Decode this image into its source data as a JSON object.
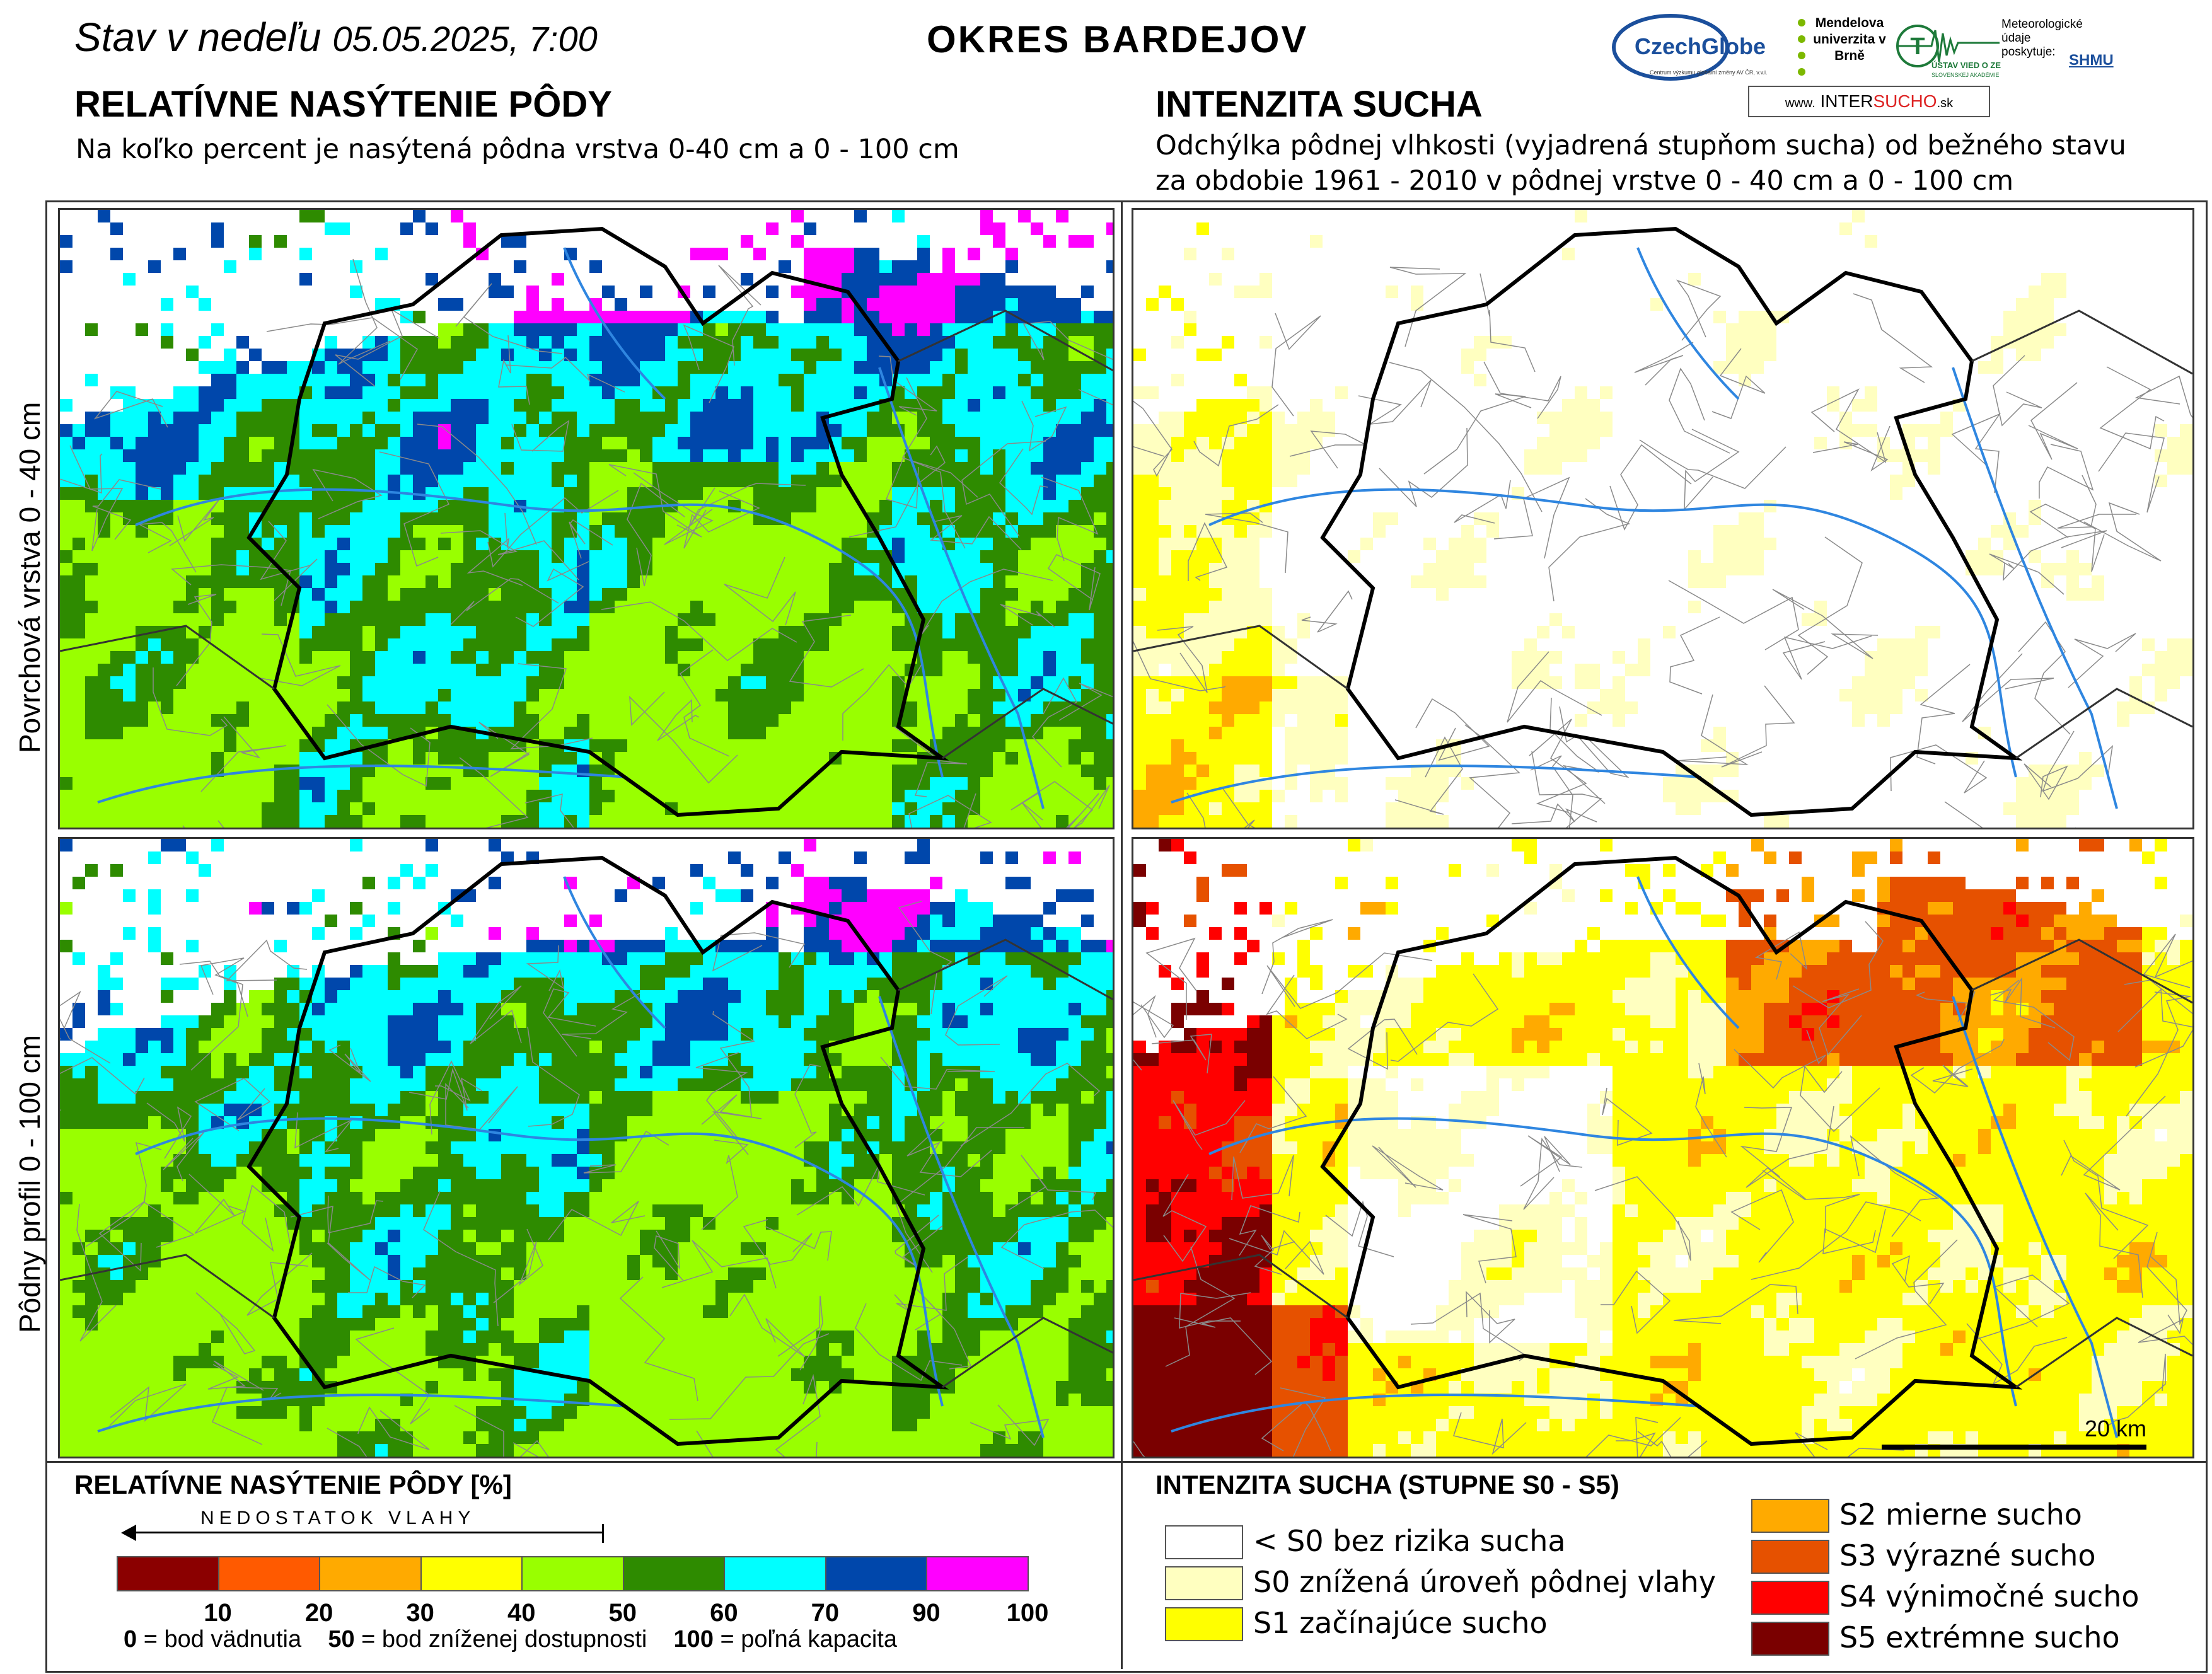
{
  "header": {
    "status_prefix": "Stav v nedeľu",
    "status_datetime": "05.05.2025, 7:00",
    "region": "OKRES  BARDEJOV"
  },
  "left_section": {
    "title": "RELATÍVNE NASÝTENIE PÔDY",
    "subtitle": "Na koľko percent je nasýtená pôdna vrstva 0-40 cm a 0 - 100 cm"
  },
  "right_section": {
    "title": "INTENZITA SUCHA",
    "subtitle_line1": "Odchýlka pôdnej vlhkosti (vyjadrená stupňom sucha) od bežného stavu",
    "subtitle_line2": "za obdobie 1961 - 2010 v pôdnej vrstve 0 - 40 cm a 0 - 100 cm"
  },
  "logos": {
    "czechglobe": "CzechGlobe",
    "czechglobe_sub": "Centrum výzkumu globální změny AV ČR, v.v.i.",
    "mendel": "Mendelova univerzita v Brně",
    "uvz": "ÚSTAV VIED O ZEMI",
    "uvz_sub": "SLOVENSKEJ AKADÉMIE VIED",
    "meteo": "Meteorologické údaje poskytuje:",
    "shmu": "SHMU",
    "intersucho_prefix": "www.",
    "intersucho_a": "INTER",
    "intersucho_b": "SUCHO",
    "intersucho_suffix": ".sk"
  },
  "row_labels": {
    "top": "Povrchová vrstva 0 - 40 cm",
    "bottom": "Pôdny profil 0 - 100 cm"
  },
  "scale_bar": "20 km",
  "legend_saturation": {
    "title": "RELATÍVNE NASÝTENIE PÔDY [%]",
    "arrow_label": "NEDOSTATOK VLAHY",
    "colors": [
      "#8b0000",
      "#ff5a00",
      "#ffaa00",
      "#ffff00",
      "#99ff00",
      "#2e8b00",
      "#00ffff",
      "#0047ab",
      "#ff00ff"
    ],
    "ticks": [
      "10",
      "20",
      "30",
      "40",
      "50",
      "60",
      "70",
      "90",
      "100"
    ],
    "note_0_value": "0",
    "note_0_text": " = bod vädnutia",
    "note_50_value": "50",
    "note_50_text": " = bod zníženej dostupnosti",
    "note_100_value": "100",
    "note_100_text": " = poľná kapacita"
  },
  "legend_drought": {
    "title": "INTENZITA SUCHA (STUPNE S0 - S5)",
    "items": [
      {
        "label": "< S0 bez rizika sucha",
        "color": "#ffffff"
      },
      {
        "label": "S0 znížená úroveň pôdnej vlahy",
        "color": "#ffffc0"
      },
      {
        "label": "S1 začínajúce sucho",
        "color": "#ffff00"
      },
      {
        "label": "S2 mierne sucho",
        "color": "#ffaa00"
      },
      {
        "label": "S3 výrazné sucho",
        "color": "#e65100"
      },
      {
        "label": "S4 výnimočné sucho",
        "color": "#ff0000"
      },
      {
        "label": "S5 extrémne sucho",
        "color": "#7a0000"
      }
    ]
  }
}
